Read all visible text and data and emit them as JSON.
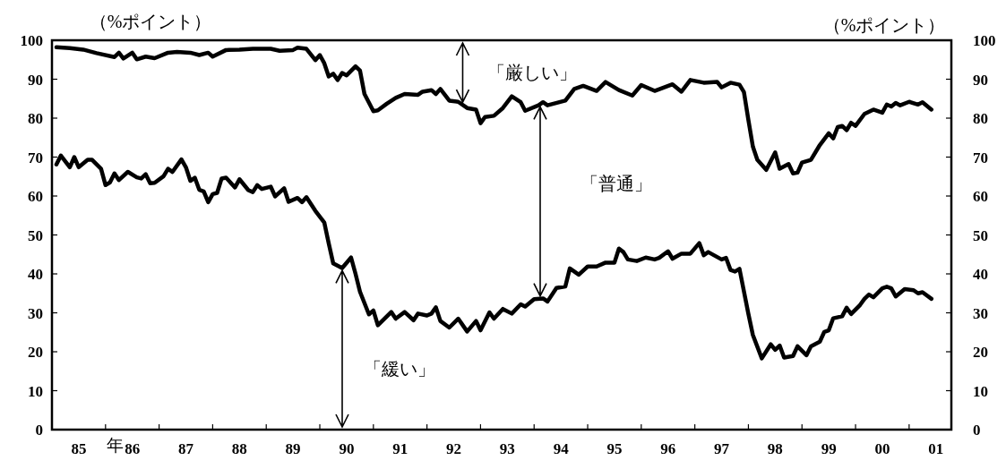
{
  "chart_data": {
    "type": "line",
    "xlabel": "年",
    "ylabel": "（%ポイント）",
    "y2label": "（%ポイント）",
    "xlim": [
      "1985-01",
      "2001-10-15"
    ],
    "ylim": [
      0,
      100
    ],
    "y2lim": [
      0,
      100
    ],
    "xticks": [
      {
        "value": "1985-07",
        "label": "85"
      },
      {
        "value": "1986-01",
        "label": null
      },
      {
        "value": "1986-07",
        "label": "86"
      },
      {
        "value": "1987-01",
        "label": null
      },
      {
        "value": "1987-07",
        "label": "87"
      },
      {
        "value": "1988-01",
        "label": null
      },
      {
        "value": "1988-07",
        "label": "88"
      },
      {
        "value": "1989-01",
        "label": null
      },
      {
        "value": "1989-07",
        "label": "89"
      },
      {
        "value": "1990-01",
        "label": null
      },
      {
        "value": "1990-07",
        "label": "90"
      },
      {
        "value": "1991-01",
        "label": null
      },
      {
        "value": "1991-07",
        "label": "91"
      },
      {
        "value": "1992-01",
        "label": null
      },
      {
        "value": "1992-07",
        "label": "92"
      },
      {
        "value": "1993-01",
        "label": null
      },
      {
        "value": "1993-07",
        "label": "93"
      },
      {
        "value": "1994-01",
        "label": null
      },
      {
        "value": "1994-07",
        "label": "94"
      },
      {
        "value": "1995-01",
        "label": null
      },
      {
        "value": "1995-07",
        "label": "95"
      },
      {
        "value": "1996-01",
        "label": null
      },
      {
        "value": "1996-07",
        "label": "96"
      },
      {
        "value": "1997-01",
        "label": null
      },
      {
        "value": "1997-07",
        "label": "97"
      },
      {
        "value": "1998-01",
        "label": null
      },
      {
        "value": "1998-07",
        "label": "98"
      },
      {
        "value": "1999-01",
        "label": null
      },
      {
        "value": "1999-07",
        "label": "99"
      },
      {
        "value": "2000-01",
        "label": null
      },
      {
        "value": "2000-07",
        "label": "00"
      },
      {
        "value": "2001-01",
        "label": null
      },
      {
        "value": "2001-07",
        "label": "01"
      }
    ],
    "yticks": [
      0,
      10,
      20,
      30,
      40,
      50,
      60,
      70,
      80,
      90,
      100
    ],
    "y2ticks": [
      0,
      10,
      20,
      30,
      40,
      50,
      60,
      70,
      80,
      90,
      100
    ],
    "series": [
      {
        "color": "#000000",
        "x": [
          "1985-02",
          "1985-05",
          "1985-08",
          "1985-11",
          "1986-03",
          "1986-04",
          "1986-05",
          "1986-07",
          "1986-08",
          "1986-10",
          "1986-12",
          "1987-03",
          "1987-05",
          "1987-08",
          "1987-10",
          "1987-12",
          "1988-01",
          "1988-04",
          "1988-07",
          "1988-10",
          "1989-02",
          "1989-04",
          "1989-07",
          "1989-08",
          "1989-10",
          "1989-12",
          "1990-01",
          "1990-02",
          "1990-03",
          "1990-04",
          "1990-05",
          "1990-06",
          "1990-07",
          "1990-09",
          "1990-10",
          "1990-11",
          "1991-01",
          "1991-02",
          "1991-04",
          "1991-06",
          "1991-08",
          "1991-11",
          "1991-12",
          "1992-02",
          "1992-03",
          "1992-04",
          "1992-06",
          "1992-08",
          "1992-10",
          "1992-12",
          "1993-01",
          "1993-02",
          "1993-04",
          "1993-06",
          "1993-08",
          "1993-10",
          "1993-11",
          "1994-02",
          "1994-03",
          "1994-04",
          "1994-08",
          "1994-10",
          "1994-12",
          "1995-03",
          "1995-05",
          "1995-08",
          "1995-11",
          "1996-01",
          "1996-04",
          "1996-08",
          "1996-10",
          "1996-12",
          "1997-03",
          "1997-06",
          "1997-07",
          "1997-09",
          "1997-11",
          "1997-12",
          "1998-01",
          "1998-02",
          "1998-03",
          "1998-05",
          "1998-07",
          "1998-08",
          "1998-10",
          "1998-11",
          "1998-12",
          "1999-01",
          "1999-03",
          "1999-05",
          "1999-07",
          "1999-08",
          "1999-09",
          "1999-10",
          "1999-11",
          "1999-12",
          "2000-01",
          "2000-03",
          "2000-05",
          "2000-07",
          "2000-08",
          "2000-09",
          "2000-10",
          "2000-11",
          "2001-01",
          "2001-03",
          "2001-04",
          "2001-06"
        ],
        "values": [
          98.2,
          98,
          97.6,
          96.7,
          95.7,
          96.8,
          95.3,
          96.8,
          95.1,
          95.8,
          95.4,
          96.8,
          97,
          96.8,
          96.2,
          96.8,
          95.8,
          97.5,
          97.6,
          97.8,
          97.8,
          97.3,
          97.5,
          98.1,
          97.8,
          94.9,
          96.2,
          94.1,
          90.7,
          91.4,
          89.8,
          91.6,
          91,
          93.3,
          92.2,
          86.2,
          81.8,
          82,
          83.7,
          85.2,
          86.2,
          86,
          86.8,
          87.2,
          86.2,
          87.5,
          84.5,
          84.2,
          82.6,
          82.2,
          78.7,
          80.3,
          80.6,
          82.6,
          85.6,
          84.1,
          81.9,
          83.3,
          84.1,
          83.3,
          84.5,
          87.5,
          88.3,
          87,
          89.3,
          87.2,
          85.8,
          88.5,
          87,
          88.7,
          86.8,
          89.8,
          89.1,
          89.3,
          87.9,
          89.1,
          88.6,
          86.7,
          79.5,
          72.7,
          69.3,
          66.7,
          71.2,
          67,
          68.2,
          65.8,
          66,
          68.6,
          69.3,
          73.1,
          76.1,
          74.8,
          77.7,
          78,
          76.9,
          78.8,
          78,
          81.1,
          82.2,
          81.4,
          83.5,
          83,
          83.9,
          83.3,
          84.2,
          83.5,
          84.1,
          82.2
        ]
      },
      {
        "color": "#000000",
        "x": [
          "1985-02",
          "1985-03",
          "1985-05",
          "1985-06",
          "1985-07",
          "1985-09",
          "1985-10",
          "1985-12",
          "1986-01",
          "1986-02",
          "1986-03",
          "1986-04",
          "1986-06",
          "1986-08",
          "1986-09",
          "1986-10",
          "1986-11",
          "1986-12",
          "1987-02",
          "1987-03",
          "1987-04",
          "1987-06",
          "1987-07",
          "1987-08",
          "1987-09",
          "1987-10",
          "1987-11",
          "1987-12",
          "1988-01",
          "1988-02",
          "1988-03",
          "1988-04",
          "1988-06",
          "1988-07",
          "1988-09",
          "1988-10",
          "1988-11",
          "1988-12",
          "1989-02",
          "1989-03",
          "1989-05",
          "1989-06",
          "1989-08",
          "1989-09",
          "1989-10",
          "1989-12",
          "1990-02",
          "1990-03",
          "1990-04",
          "1990-06",
          "1990-08",
          "1990-09",
          "1990-10",
          "1990-12",
          "1991-01",
          "1991-02",
          "1991-05",
          "1991-06",
          "1991-08",
          "1991-10",
          "1991-11",
          "1992-01",
          "1992-02",
          "1992-03",
          "1992-04",
          "1992-06",
          "1992-08",
          "1992-10",
          "1992-12",
          "1993-01",
          "1993-03",
          "1993-04",
          "1993-06",
          "1993-08",
          "1993-10",
          "1993-11",
          "1994-01",
          "1994-03",
          "1994-04",
          "1994-06",
          "1994-08",
          "1994-09",
          "1994-11",
          "1995-01",
          "1995-03",
          "1995-05",
          "1995-07",
          "1995-08",
          "1995-09",
          "1995-10",
          "1995-12",
          "1996-02",
          "1996-04",
          "1996-05",
          "1996-07",
          "1996-08",
          "1996-10",
          "1996-12",
          "1997-02",
          "1997-03",
          "1997-04",
          "1997-07",
          "1997-08",
          "1997-09",
          "1997-10",
          "1997-11",
          "1998-01",
          "1998-02",
          "1998-04",
          "1998-06",
          "1998-07",
          "1998-08",
          "1998-09",
          "1998-11",
          "1998-12",
          "1999-02",
          "1999-03",
          "1999-05",
          "1999-06",
          "1999-07",
          "1999-08",
          "1999-10",
          "1999-11",
          "1999-12",
          "2000-02",
          "2000-03",
          "2000-04",
          "2000-05",
          "2000-07",
          "2000-08",
          "2000-09",
          "2000-10",
          "2000-12",
          "2001-02",
          "2001-03",
          "2001-04",
          "2001-06"
        ],
        "values": [
          68.1,
          70.4,
          67.4,
          70,
          67.4,
          69.3,
          69.3,
          67,
          62.8,
          63.5,
          65.8,
          64.1,
          66.2,
          64.8,
          64.5,
          65.6,
          63.3,
          63.4,
          65.1,
          67,
          66.2,
          69.4,
          67.4,
          63.9,
          64.7,
          61.6,
          61.2,
          58.4,
          60.5,
          60.8,
          64.5,
          64.7,
          62.2,
          64.3,
          61.5,
          61,
          62.8,
          61.8,
          62.4,
          59.9,
          62,
          58.5,
          59.5,
          58.4,
          59.7,
          56.2,
          53.2,
          47.8,
          42.7,
          41.5,
          44.2,
          40,
          35.4,
          29.6,
          30.6,
          26.8,
          30.2,
          28.5,
          30.2,
          28.1,
          29.8,
          29.3,
          29.8,
          31.4,
          27.9,
          26.2,
          28.5,
          25.2,
          27.9,
          25.5,
          30.1,
          28.5,
          31,
          29.8,
          32.2,
          31.6,
          33.5,
          33.7,
          32.9,
          36.4,
          36.8,
          41.4,
          39.8,
          41.9,
          41.9,
          42.9,
          42.9,
          46.5,
          45.6,
          43.7,
          43.3,
          44.2,
          43.7,
          44.1,
          45.8,
          43.9,
          45.2,
          45.2,
          47.9,
          44.8,
          45.6,
          43.7,
          44.1,
          41,
          40.6,
          41.3,
          29.7,
          24.3,
          18.3,
          21.9,
          20.5,
          21.6,
          18.5,
          18.9,
          21.4,
          19.1,
          21.4,
          22.6,
          25.1,
          25.5,
          28.6,
          29.1,
          31.3,
          29.7,
          32,
          33.6,
          34.7,
          34,
          36.3,
          36.7,
          36.3,
          34.2,
          36.1,
          35.8,
          35,
          35.3,
          33.6
        ]
      }
    ],
    "annotations": [
      {
        "text": "「厳しい」",
        "x": "1992-09",
        "y": 83.4
      },
      "「普通」",
      "「緩い」"
    ]
  }
}
